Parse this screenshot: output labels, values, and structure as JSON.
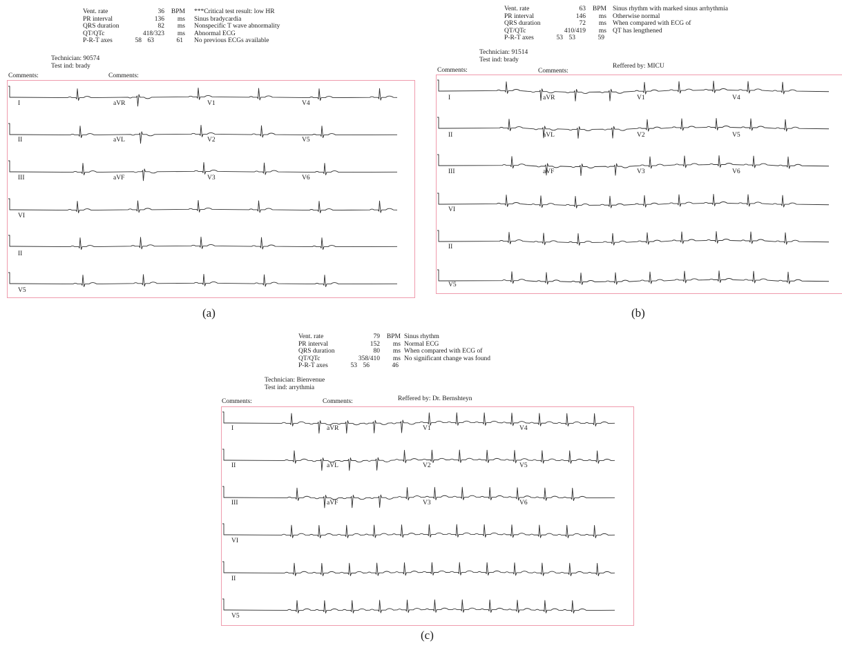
{
  "figures": [
    {
      "caption": "(a)",
      "measurements": {
        "vent_rate": {
          "label": "Vent. rate",
          "value": "36",
          "unit": "BPM"
        },
        "pr_interval": {
          "label": "PR interval",
          "value": "136",
          "unit": "ms"
        },
        "qrs_duration": {
          "label": "QRS duration",
          "value": "82",
          "unit": "ms"
        },
        "qt_qtc": {
          "label": "QT/QTc",
          "value": "418/323",
          "unit": "ms"
        },
        "prt_axes": {
          "label": "P-R-T axes",
          "p": "58",
          "r": "63",
          "t": "61"
        }
      },
      "interpretation": [
        "***Critical test result: low HR",
        "Sinus bradycardia",
        "Nonspecific T wave abnormality",
        "Abnormal ECG",
        "No previous ECGs available"
      ],
      "technician": "Technician: 90574",
      "test_ind": "Test ind: brady",
      "comments_1": "Comments:",
      "comments_2": "Comments:",
      "referred_by": "",
      "rows": [
        [
          "I",
          "aVR",
          "V1",
          "V4"
        ],
        [
          "II",
          "aVL",
          "V2",
          "V5"
        ],
        [
          "III",
          "aVF",
          "V3",
          "V6"
        ],
        [
          "VI"
        ],
        [
          "II"
        ],
        [
          "V5"
        ]
      ]
    },
    {
      "caption": "(b)",
      "measurements": {
        "vent_rate": {
          "label": "Vent. rate",
          "value": "63",
          "unit": "BPM"
        },
        "pr_interval": {
          "label": "PR interval",
          "value": "146",
          "unit": "ms"
        },
        "qrs_duration": {
          "label": "QRS duration",
          "value": "72",
          "unit": "ms"
        },
        "qt_qtc": {
          "label": "QT/QTc",
          "value": "410/419",
          "unit": "ms"
        },
        "prt_axes": {
          "label": "P-R-T axes",
          "p": "53",
          "r": "53",
          "t": "59"
        }
      },
      "interpretation": [
        "Sinus rhythm with marked sinus arrhythmia",
        "Otherwise normal",
        "When compared with ECG of",
        "QT has lengthened"
      ],
      "technician": "Technician: 91514",
      "test_ind": "Test ind: brady",
      "comments_1": "Comments:",
      "comments_2": "Comments:",
      "referred_by": "Reffered by: MICU",
      "rows": [
        [
          "I",
          "aVR",
          "V1",
          "V4"
        ],
        [
          "II",
          "aVL",
          "V2",
          "V5"
        ],
        [
          "III",
          "aVF",
          "V3",
          "V6"
        ],
        [
          "VI"
        ],
        [
          "II"
        ],
        [
          "V5"
        ]
      ]
    },
    {
      "caption": "(c)",
      "measurements": {
        "vent_rate": {
          "label": "Vent. rate",
          "value": "79",
          "unit": "BPM"
        },
        "pr_interval": {
          "label": "PR interval",
          "value": "152",
          "unit": "ms"
        },
        "qrs_duration": {
          "label": "QRS duration",
          "value": "80",
          "unit": "ms"
        },
        "qt_qtc": {
          "label": "QT/QTc",
          "value": "358/410",
          "unit": "ms"
        },
        "prt_axes": {
          "label": "P-R-T axes",
          "p": "53",
          "r": "56",
          "t": "46"
        }
      },
      "interpretation": [
        "Sinus rhythm",
        "Normal ECG",
        "When compared with ECG of",
        "No significant change was found"
      ],
      "technician": "Technician: Bienvenue",
      "test_ind": "Test ind: arrythmia",
      "comments_1": "Comments:",
      "comments_2": "Comments:",
      "referred_by": "Reffered by: Dr. Bernshteyn",
      "rows": [
        [
          "I",
          "aVR",
          "V1",
          "V4"
        ],
        [
          "II",
          "aVL",
          "V2",
          "V5"
        ],
        [
          "III",
          "aVF",
          "V3",
          "V6"
        ],
        [
          "VI"
        ],
        [
          "II"
        ],
        [
          "V5"
        ]
      ]
    }
  ],
  "colors": {
    "trace": "#2e2e2e",
    "frame": "#ef9aac"
  }
}
